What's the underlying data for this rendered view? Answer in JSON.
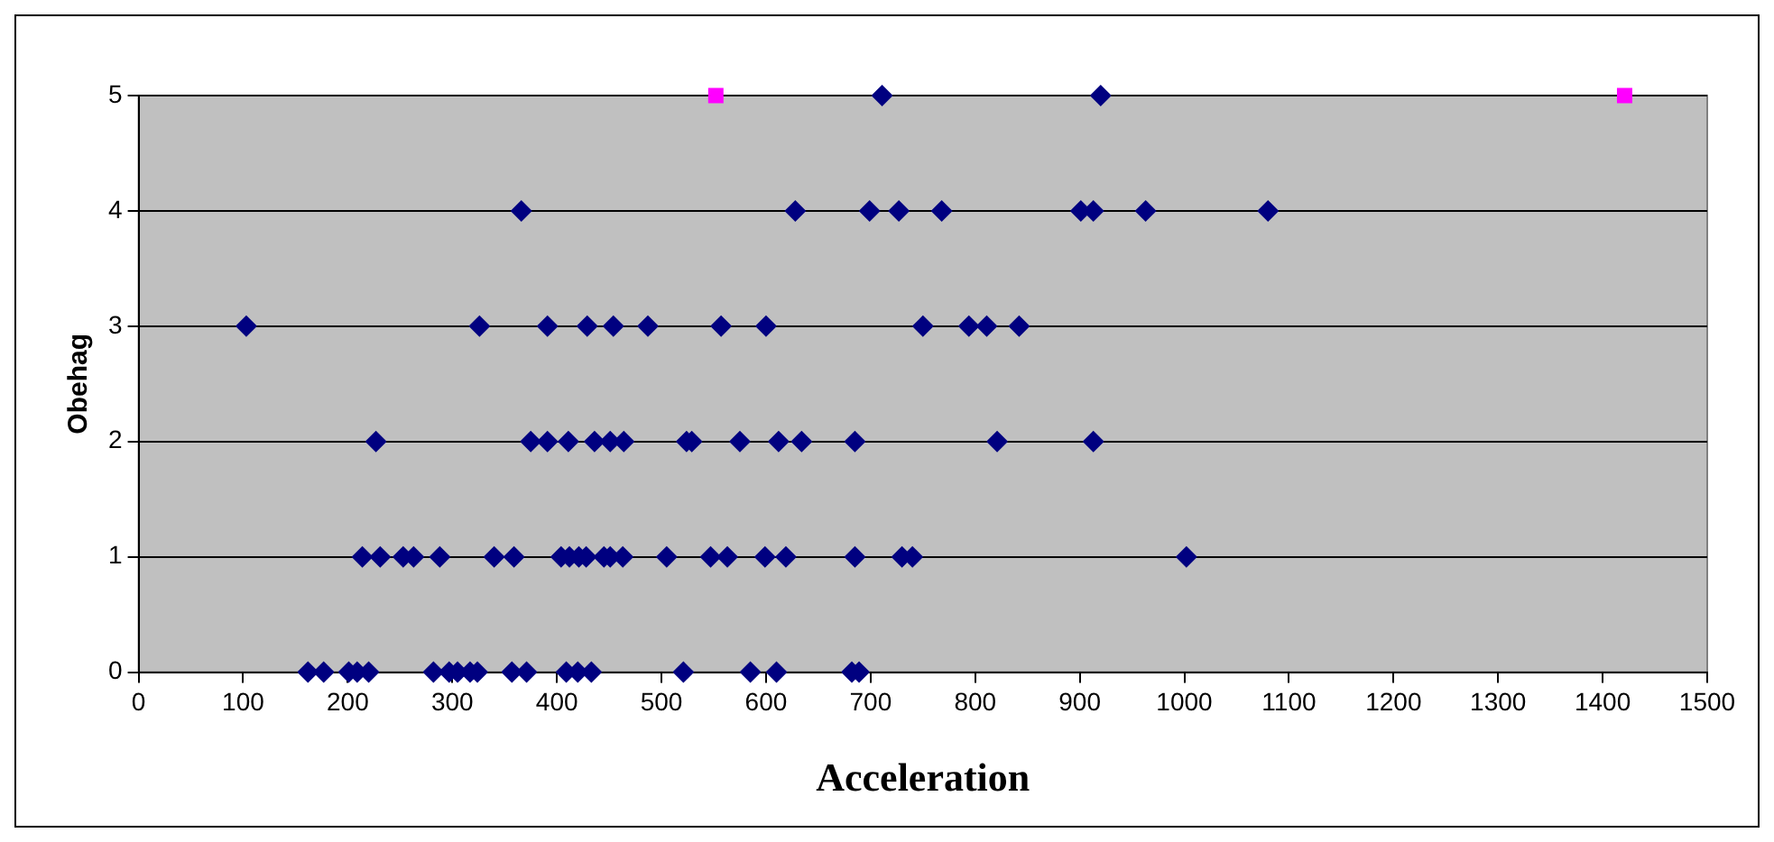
{
  "chart_data": {
    "type": "scatter",
    "xlabel": "Acceleration",
    "ylabel": "Obehag",
    "xlim": [
      0,
      1500
    ],
    "xticks": [
      0,
      100,
      200,
      300,
      400,
      500,
      600,
      700,
      800,
      900,
      1000,
      1100,
      1200,
      1300,
      1400,
      1500
    ],
    "ylim": [
      0,
      5
    ],
    "yticks": [
      0,
      1,
      2,
      3,
      4,
      5
    ],
    "grid": "y",
    "legend": false,
    "series": [
      {
        "color": "#000080",
        "marker": "diamond",
        "x": [
          711,
          920,
          366,
          628,
          699,
          727,
          768,
          901,
          913,
          963,
          1080,
          103,
          326,
          391,
          429,
          454,
          487,
          557,
          600,
          750,
          794,
          811,
          842,
          227,
          375,
          391,
          411,
          436,
          451,
          464,
          524,
          529,
          575,
          612,
          634,
          685,
          821,
          913,
          214,
          231,
          253,
          263,
          288,
          340,
          359,
          404,
          412,
          421,
          428,
          445,
          451,
          463,
          505,
          547,
          563,
          599,
          619,
          685,
          730,
          740,
          1002,
          162,
          177,
          201,
          209,
          220,
          282,
          297,
          305,
          317,
          324,
          357,
          371,
          409,
          420,
          433,
          521,
          585,
          610,
          682,
          689
        ],
        "values": [
          5,
          5,
          4,
          4,
          4,
          4,
          4,
          4,
          4,
          4,
          4,
          3,
          3,
          3,
          3,
          3,
          3,
          3,
          3,
          3,
          3,
          3,
          3,
          2,
          2,
          2,
          2,
          2,
          2,
          2,
          2,
          2,
          2,
          2,
          2,
          2,
          2,
          2,
          1,
          1,
          1,
          1,
          1,
          1,
          1,
          1,
          1,
          1,
          1,
          1,
          1,
          1,
          1,
          1,
          1,
          1,
          1,
          1,
          1,
          1,
          1,
          0,
          0,
          0,
          0,
          0,
          0,
          0,
          0,
          0,
          0,
          0,
          0,
          0,
          0,
          0,
          0,
          0,
          0,
          0,
          0
        ]
      },
      {
        "color": "#ff00ff",
        "marker": "square",
        "x": [
          552,
          1421
        ],
        "values": [
          5,
          5
        ]
      }
    ]
  }
}
